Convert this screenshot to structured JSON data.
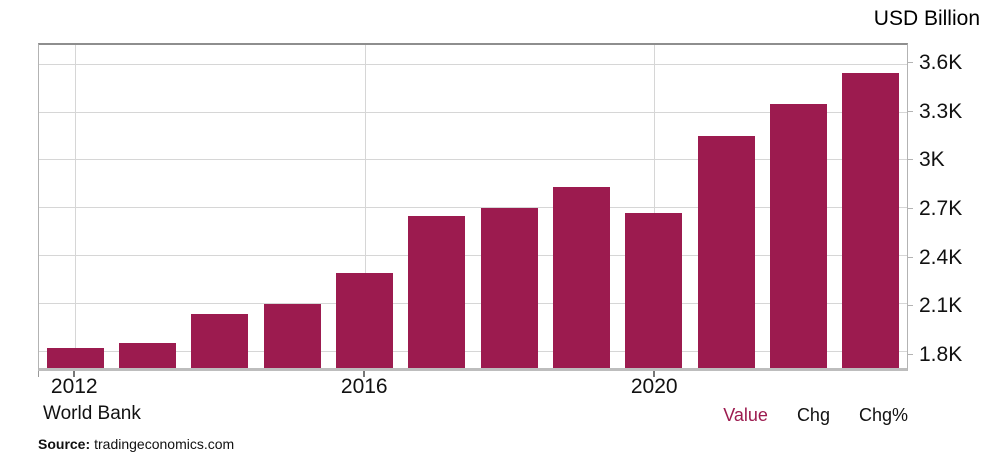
{
  "header": {
    "unit_label": "USD Billion"
  },
  "footer": {
    "provider": "World Bank",
    "source_label": "Source:",
    "source_value": "tradingeconomics.com",
    "legend": [
      {
        "id": "value",
        "label": "Value",
        "color": "#9C1B4F",
        "active": true
      },
      {
        "id": "chg",
        "label": "Chg",
        "color": "#111111",
        "active": false
      },
      {
        "id": "chg-pct",
        "label": "Chg%",
        "color": "#111111",
        "active": false
      }
    ]
  },
  "colors": {
    "bar": "#9C1B4F",
    "grid": "#d6d6d6",
    "plot_border": "#b3b3b3",
    "axis_text": "#111111",
    "accent": "#9C1B4F"
  },
  "chart_data": {
    "type": "bar",
    "title": "",
    "unit": "USD Billion",
    "ylabel": "USD Billion",
    "xlabel": "",
    "grid": true,
    "legend_position": "bottom-right",
    "categories": [
      "2012",
      "2013",
      "2014",
      "2015",
      "2016",
      "2017",
      "2018",
      "2019",
      "2020",
      "2021",
      "2022",
      "2023"
    ],
    "values": [
      1827.6,
      1856.7,
      2039.1,
      2103.6,
      2294.8,
      2651.5,
      2702.9,
      2835.6,
      2671.6,
      3150.3,
      3353.5,
      3549.9
    ],
    "bar_color": "#9C1B4F",
    "ylim": [
      1700,
      3723
    ],
    "yticks": [
      {
        "value": 1800,
        "label": "1.8K"
      },
      {
        "value": 2100,
        "label": "2.1K"
      },
      {
        "value": 2400,
        "label": "2.4K"
      },
      {
        "value": 2700,
        "label": "2.7K"
      },
      {
        "value": 3000,
        "label": "3K"
      },
      {
        "value": 3300,
        "label": "3.3K"
      },
      {
        "value": 3600,
        "label": "3.6K"
      }
    ],
    "xticks": [
      {
        "index": 0,
        "label": "2012"
      },
      {
        "index": 4,
        "label": "2016"
      },
      {
        "index": 8,
        "label": "2020"
      }
    ]
  }
}
